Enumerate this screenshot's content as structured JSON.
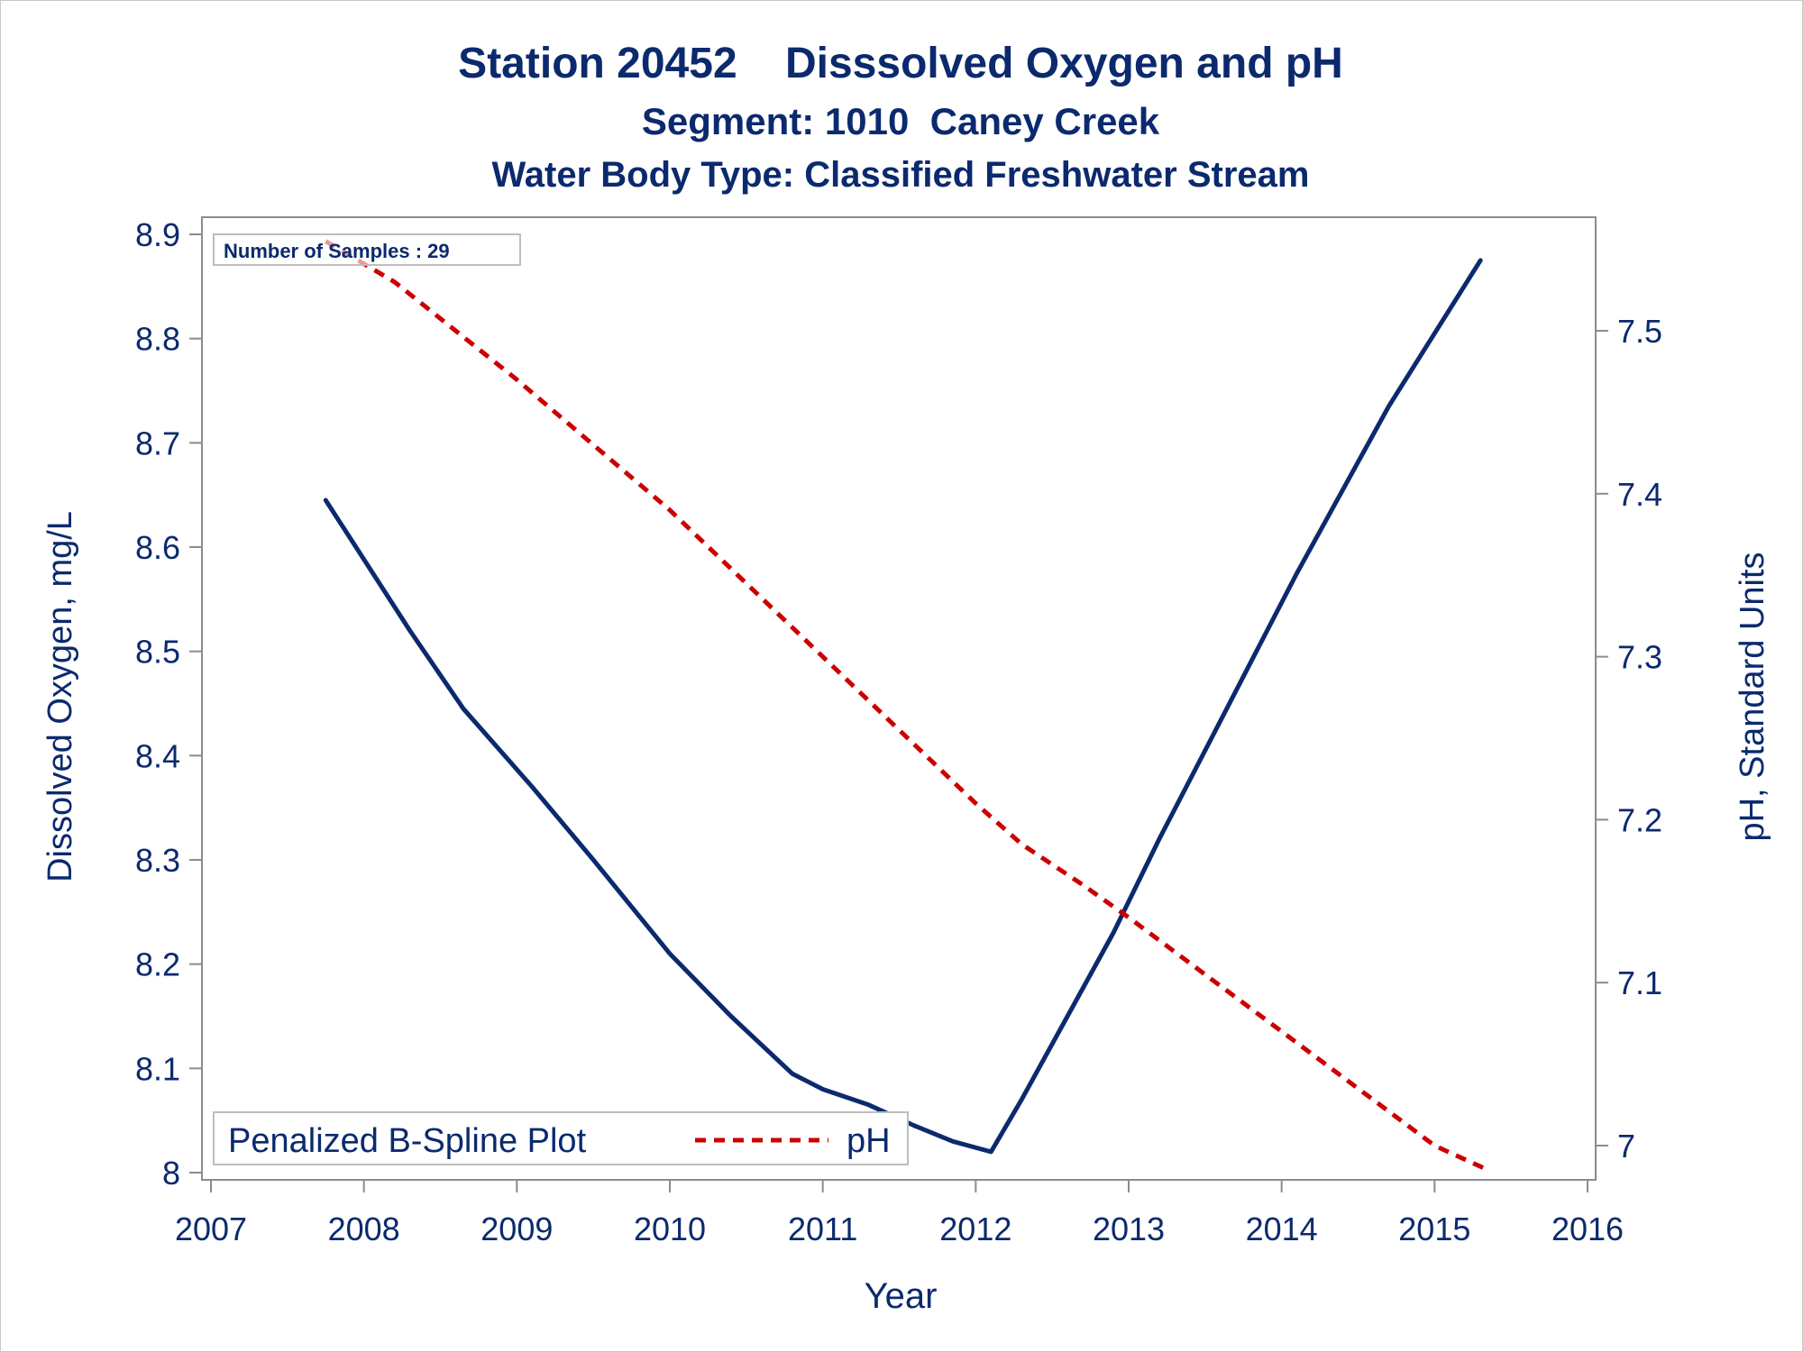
{
  "chart_data": {
    "type": "line",
    "title": "Station 20452    Disssolved Oxygen and pH",
    "subtitle": "Segment: 1010  Caney Creek",
    "subtitle2": "Water Body Type: Classified Freshwater Stream",
    "xlabel": "Year",
    "ylabel": "Dissolved Oxygen, mg/L",
    "y2label": "pH, Standard Units",
    "xlim": [
      2007,
      2016
    ],
    "ylim": [
      8.0,
      8.9
    ],
    "y2lim": [
      6.985,
      7.555
    ],
    "x_ticks": [
      "2007",
      "2008",
      "2009",
      "2010",
      "2011",
      "2012",
      "2013",
      "2014",
      "2015",
      "2016"
    ],
    "y_ticks": [
      "8",
      "8.1",
      "8.2",
      "8.3",
      "8.4",
      "8.5",
      "8.6",
      "8.7",
      "8.8",
      "8.9"
    ],
    "y2_ticks": [
      "7",
      "7.1",
      "7.2",
      "7.3",
      "7.4",
      "7.5"
    ],
    "annotation": "Number of Samples : 29",
    "legend": {
      "placement": "bottom-left",
      "label": "Penalized B-Spline Plot",
      "entries": [
        "pH"
      ]
    },
    "grid": false,
    "series": [
      {
        "axis": "y",
        "style": "solid",
        "color": "#0b2a6e",
        "x": [
          2007.75,
          2008.3,
          2008.65,
          2009.1,
          2009.5,
          2010.0,
          2010.4,
          2010.8,
          2011.0,
          2011.3,
          2011.6,
          2011.85,
          2012.1,
          2012.3,
          2012.6,
          2012.9,
          2013.2,
          2013.5,
          2013.8,
          2014.1,
          2014.4,
          2014.7,
          2015.0,
          2015.3
        ],
        "values": [
          8.645,
          8.52,
          8.445,
          8.37,
          8.3,
          8.21,
          8.15,
          8.095,
          8.08,
          8.065,
          8.045,
          8.03,
          8.02,
          8.07,
          8.15,
          8.23,
          8.32,
          8.405,
          8.49,
          8.575,
          8.655,
          8.735,
          8.805,
          8.875
        ]
      },
      {
        "axis": "y2",
        "style": "dashed",
        "color": "#cc0000",
        "x": [
          2007.75,
          2008.2,
          2008.6,
          2009.0,
          2009.5,
          2010.0,
          2010.5,
          2011.0,
          2011.5,
          2012.0,
          2012.3,
          2012.7,
          2013.0,
          2013.5,
          2014.0,
          2014.5,
          2015.0,
          2015.35
        ],
        "values": [
          7.555,
          7.53,
          7.5,
          7.47,
          7.43,
          7.39,
          7.345,
          7.3,
          7.255,
          7.21,
          7.185,
          7.16,
          7.14,
          7.105,
          7.07,
          7.035,
          7.0,
          6.985
        ]
      }
    ]
  }
}
